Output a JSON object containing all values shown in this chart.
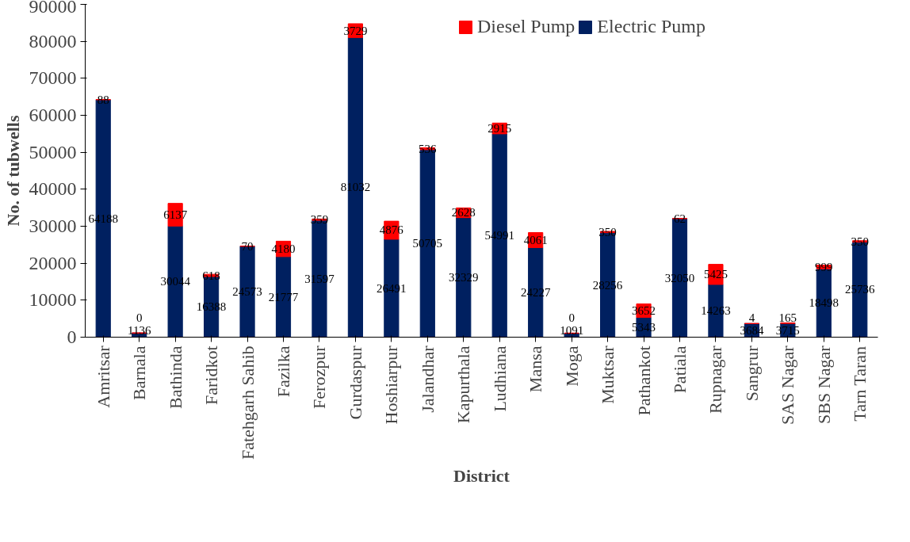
{
  "chart_data": {
    "type": "bar",
    "stacked": true,
    "xlabel": "District",
    "ylabel": "No. of tubwells",
    "categories": [
      "Amritsar",
      "Barnala",
      "Bathinda",
      "Faridkot",
      "Fatehgarh Sahib",
      "Fazilka",
      "Ferozpur",
      "Gurdaspur",
      "Hoshiarpur",
      "Jalandhar",
      "Kapurthala",
      "Ludhiana",
      "Mansa",
      "Moga",
      "Muktsar",
      "Pathankot",
      "Patiala",
      "Rupnagar",
      "Sangrur",
      "SAS Nagar",
      "SBS Nagar",
      "Tarn Taran"
    ],
    "series": [
      {
        "name": "Electric Pump",
        "color": "#002060",
        "values": [
          64188,
          1136,
          30044,
          16388,
          24573,
          21777,
          31597,
          81032,
          26491,
          50705,
          32329,
          54991,
          24227,
          1091,
          28256,
          5343,
          32050,
          14263,
          3684,
          3715,
          18498,
          25736
        ]
      },
      {
        "name": "Diesel Pump",
        "color": "#ff0000",
        "values": [
          88,
          0,
          6137,
          618,
          70,
          4180,
          359,
          3729,
          4876,
          536,
          2628,
          2915,
          4061,
          0,
          350,
          3652,
          62,
          5425,
          4,
          165,
          999,
          350
        ]
      }
    ],
    "ylim": [
      0,
      90000
    ],
    "yticks": [
      0,
      10000,
      20000,
      30000,
      40000,
      50000,
      60000,
      70000,
      80000,
      90000
    ],
    "data_labels": true,
    "legend": "top",
    "grid": false
  }
}
